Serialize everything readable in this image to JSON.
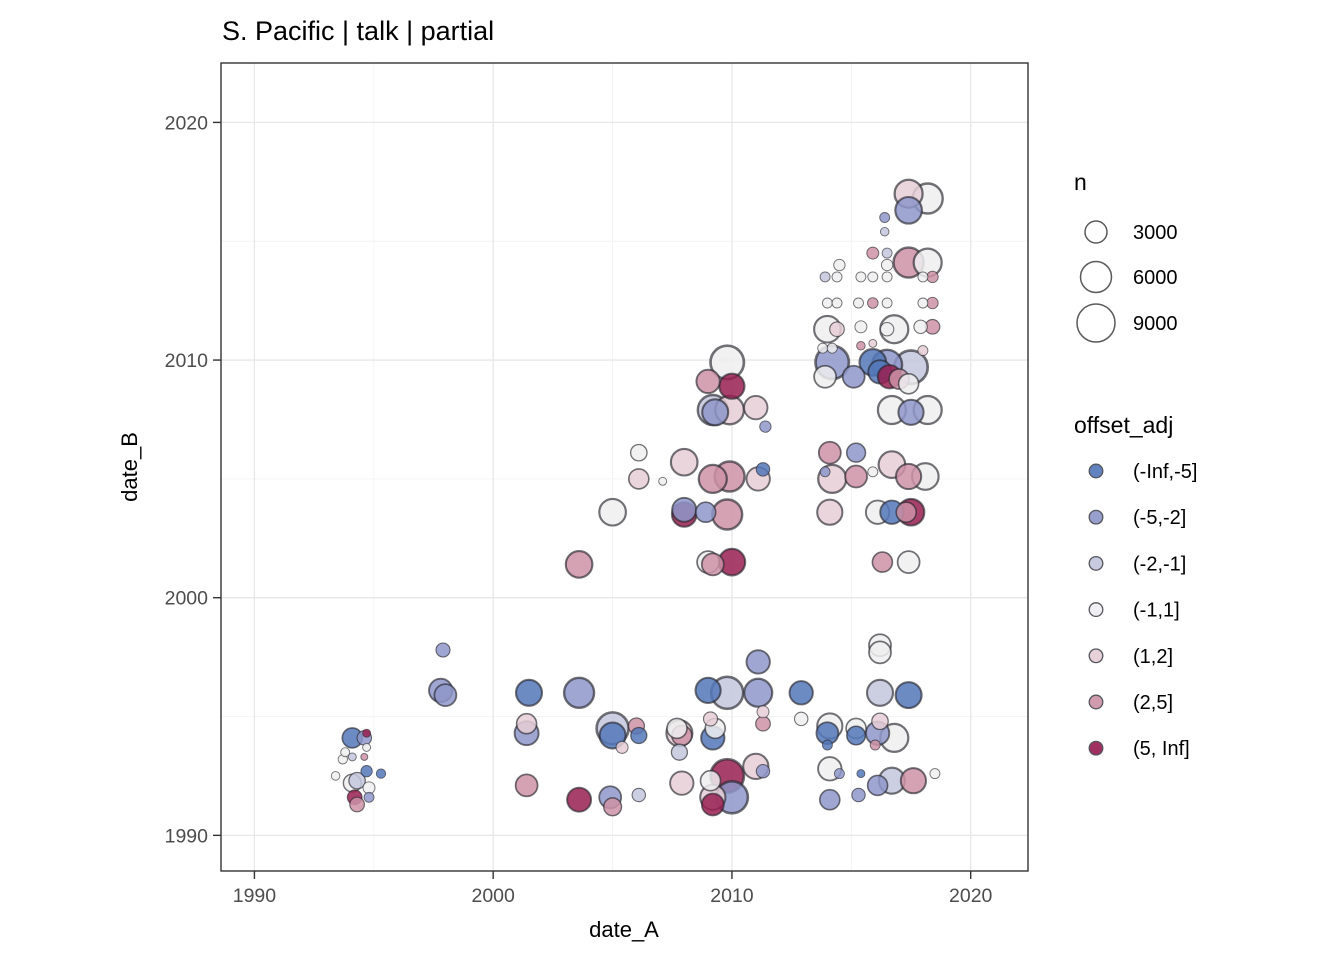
{
  "title": "S. Pacific | talk | partial",
  "chart_data": {
    "type": "scatter",
    "xlabel": "date_A",
    "ylabel": "date_B",
    "x_ticks": [
      1990,
      2000,
      2010,
      2020
    ],
    "y_ticks": [
      1990,
      2000,
      2010,
      2020
    ],
    "x_minor": [
      1995,
      2005,
      2015
    ],
    "y_minor": [
      1995,
      2005,
      2015
    ],
    "xlim": [
      1988.6,
      2022.4
    ],
    "ylim": [
      1988.5,
      2022.5
    ],
    "grid": "major+minor, white panel, dark border",
    "size_scale": {
      "type": "area",
      "r_per_sqrt_n": 0.2
    },
    "size_legend": {
      "title": "n",
      "values": [
        3000,
        6000,
        9000
      ]
    },
    "color_legend": {
      "title": "offset_adj",
      "bins": [
        {
          "label": "(-Inf,-5]",
          "color": "#5377b9"
        },
        {
          "label": "(-5,-2]",
          "color": "#8e97c9"
        },
        {
          "label": "(-2,-1]",
          "color": "#c3c7dc"
        },
        {
          "label": "(-1,1]",
          "color": "#efeef0"
        },
        {
          "label": "(1,2]",
          "color": "#e6ced6"
        },
        {
          "label": "(2,5]",
          "color": "#cc92a6"
        },
        {
          "label": "(5, Inf]",
          "color": "#981e51"
        }
      ]
    },
    "point_format": [
      "date_A",
      "date_B",
      "n",
      "offset_adj_bin_index"
    ],
    "points": [
      [
        1994.1,
        1994.1,
        2500,
        0
      ],
      [
        1994.6,
        1994.1,
        1300,
        1
      ],
      [
        1994.7,
        1994.3,
        400,
        6
      ],
      [
        1993.8,
        1993.5,
        500,
        3
      ],
      [
        1994.1,
        1993.3,
        400,
        2
      ],
      [
        1994.6,
        1993.3,
        300,
        5
      ],
      [
        1993.7,
        1993.2,
        550,
        3
      ],
      [
        1994.7,
        1993.7,
        400,
        3
      ],
      [
        1993.4,
        1992.5,
        460,
        3
      ],
      [
        1994.7,
        1992.7,
        810,
        0
      ],
      [
        1995.3,
        1992.6,
        550,
        0
      ],
      [
        1994.3,
        1992.3,
        1700,
        2
      ],
      [
        1994.1,
        1992.2,
        2000,
        3
      ],
      [
        1994.8,
        1992.0,
        900,
        3
      ],
      [
        1994.2,
        1991.6,
        1330,
        6
      ],
      [
        1994.3,
        1991.3,
        1330,
        5
      ],
      [
        1994.8,
        1991.6,
        625,
        1
      ],
      [
        1997.9,
        1997.8,
        1225,
        1
      ],
      [
        1997.8,
        1996.1,
        3400,
        1
      ],
      [
        1998.0,
        1995.9,
        3000,
        1
      ],
      [
        2001.5,
        1996.0,
        4200,
        0
      ],
      [
        2003.6,
        1996.0,
        5600,
        1
      ],
      [
        2009.0,
        1996.1,
        4000,
        0
      ],
      [
        2009.8,
        1996.0,
        6400,
        2
      ],
      [
        2011.1,
        1996.0,
        4900,
        1
      ],
      [
        2012.9,
        1996.0,
        3400,
        0
      ],
      [
        2016.2,
        1996.0,
        4200,
        2
      ],
      [
        2017.4,
        1995.9,
        4200,
        0
      ],
      [
        2011.1,
        1997.3,
        3400,
        1
      ],
      [
        2016.2,
        1998.0,
        3000,
        3
      ],
      [
        2016.2,
        1997.7,
        3000,
        3
      ],
      [
        2001.4,
        1994.7,
        2500,
        4
      ],
      [
        2001.4,
        1994.3,
        3600,
        1
      ],
      [
        2005.0,
        1994.5,
        6400,
        2
      ],
      [
        2005.0,
        1994.2,
        4200,
        0
      ],
      [
        2005.4,
        1993.7,
        900,
        4
      ],
      [
        2006.0,
        1994.6,
        1600,
        5
      ],
      [
        2006.1,
        1994.2,
        1600,
        0
      ],
      [
        2007.8,
        1994.3,
        4200,
        4
      ],
      [
        2007.9,
        1994.2,
        2500,
        5
      ],
      [
        2007.7,
        1994.5,
        2500,
        3
      ],
      [
        2007.8,
        1993.5,
        1600,
        2
      ],
      [
        2009.1,
        1994.9,
        1225,
        4
      ],
      [
        2009.3,
        1994.5,
        2500,
        3
      ],
      [
        2009.2,
        1994.1,
        3400,
        0
      ],
      [
        2011.3,
        1995.2,
        900,
        4
      ],
      [
        2011.3,
        1994.7,
        1330,
        5
      ],
      [
        2012.9,
        1994.9,
        1120,
        3
      ],
      [
        2014.0,
        1994.3,
        3000,
        0
      ],
      [
        2014.1,
        1994.6,
        4000,
        3
      ],
      [
        2014.0,
        1993.8,
        625,
        0
      ],
      [
        2015.2,
        1994.5,
        2500,
        3
      ],
      [
        2015.2,
        1994.2,
        2160,
        0
      ],
      [
        2016.2,
        1994.8,
        1700,
        4
      ],
      [
        2016.1,
        1994.3,
        3400,
        1
      ],
      [
        2016.0,
        1993.8,
        625,
        5
      ],
      [
        2016.8,
        1994.1,
        4900,
        3
      ],
      [
        2001.4,
        1992.1,
        3000,
        5
      ],
      [
        2003.6,
        1991.5,
        3600,
        6
      ],
      [
        2004.9,
        1991.6,
        3000,
        1
      ],
      [
        2005.0,
        1991.2,
        2000,
        5
      ],
      [
        2006.1,
        1991.7,
        1120,
        2
      ],
      [
        2007.9,
        1992.2,
        3400,
        4
      ],
      [
        2009.1,
        1992.3,
        2500,
        3
      ],
      [
        2009.8,
        1992.5,
        7000,
        6
      ],
      [
        2010.0,
        1991.6,
        6400,
        1
      ],
      [
        2009.2,
        1991.6,
        4000,
        4
      ],
      [
        2009.2,
        1991.3,
        3000,
        6
      ],
      [
        2011.0,
        1992.9,
        4000,
        4
      ],
      [
        2011.3,
        1992.7,
        1120,
        1
      ],
      [
        2014.1,
        1992.8,
        3400,
        3
      ],
      [
        2014.5,
        1992.6,
        625,
        1
      ],
      [
        2015.4,
        1992.6,
        400,
        0
      ],
      [
        2014.1,
        1991.5,
        2500,
        1
      ],
      [
        2015.3,
        1991.7,
        1120,
        1
      ],
      [
        2016.1,
        1992.1,
        2500,
        1
      ],
      [
        2016.7,
        1992.3,
        4200,
        2
      ],
      [
        2017.6,
        1992.3,
        4000,
        5
      ],
      [
        2018.5,
        1992.6,
        625,
        3
      ],
      [
        2006.1,
        2006.1,
        1700,
        3
      ],
      [
        2006.1,
        2005.0,
        2500,
        4
      ],
      [
        2007.1,
        2004.9,
        400,
        3
      ],
      [
        2008.0,
        2005.7,
        4400,
        4
      ],
      [
        2009.2,
        2005.0,
        4900,
        5
      ],
      [
        2009.9,
        2005.1,
        5600,
        5
      ],
      [
        2011.1,
        2005.0,
        3400,
        4
      ],
      [
        2011.3,
        2005.4,
        1120,
        0
      ],
      [
        2005.0,
        2003.6,
        4400,
        3
      ],
      [
        2008.0,
        2003.5,
        3800,
        6
      ],
      [
        2008.0,
        2003.7,
        3600,
        1
      ],
      [
        2008.9,
        2003.6,
        2500,
        1
      ],
      [
        2009.8,
        2003.5,
        5600,
        5
      ],
      [
        2003.6,
        2001.4,
        4400,
        5
      ],
      [
        2009.0,
        2001.5,
        3000,
        3
      ],
      [
        2009.2,
        2001.4,
        3000,
        5
      ],
      [
        2010.0,
        2001.5,
        4400,
        6
      ],
      [
        2009.8,
        2009.9,
        7000,
        3
      ],
      [
        2009.0,
        2009.1,
        3400,
        5
      ],
      [
        2010.0,
        2008.9,
        4000,
        6
      ],
      [
        2009.2,
        2007.9,
        5600,
        2
      ],
      [
        2009.3,
        2007.8,
        4200,
        1
      ],
      [
        2009.9,
        2007.9,
        5100,
        4
      ],
      [
        2011.0,
        2008.0,
        3400,
        4
      ],
      [
        2011.4,
        2007.2,
        810,
        1
      ],
      [
        2017.4,
        2017.0,
        4900,
        4
      ],
      [
        2018.2,
        2016.8,
        5600,
        3
      ],
      [
        2017.4,
        2016.3,
        4400,
        1
      ],
      [
        2016.4,
        2016.0,
        625,
        1
      ],
      [
        2016.4,
        2015.4,
        460,
        2
      ],
      [
        2015.9,
        2014.5,
        900,
        5
      ],
      [
        2016.5,
        2014.5,
        625,
        2
      ],
      [
        2017.4,
        2014.1,
        5600,
        5
      ],
      [
        2018.2,
        2014.1,
        4900,
        3
      ],
      [
        2014.5,
        2014.0,
        810,
        3
      ],
      [
        2016.5,
        2014.0,
        810,
        3
      ],
      [
        2013.9,
        2013.5,
        625,
        2
      ],
      [
        2014.4,
        2013.5,
        625,
        3
      ],
      [
        2015.4,
        2013.5,
        625,
        3
      ],
      [
        2015.9,
        2013.5,
        625,
        3
      ],
      [
        2016.5,
        2013.5,
        625,
        3
      ],
      [
        2018.0,
        2013.5,
        625,
        3
      ],
      [
        2018.4,
        2013.5,
        810,
        5
      ],
      [
        2014.0,
        2012.4,
        625,
        3
      ],
      [
        2014.4,
        2012.4,
        625,
        3
      ],
      [
        2015.3,
        2012.4,
        625,
        3
      ],
      [
        2015.9,
        2012.4,
        700,
        5
      ],
      [
        2016.5,
        2012.4,
        625,
        3
      ],
      [
        2018.0,
        2012.4,
        625,
        3
      ],
      [
        2018.4,
        2012.4,
        810,
        5
      ],
      [
        2014.0,
        2011.3,
        4400,
        3
      ],
      [
        2014.4,
        2011.3,
        1330,
        4
      ],
      [
        2015.4,
        2011.4,
        900,
        3
      ],
      [
        2016.8,
        2011.3,
        4900,
        3
      ],
      [
        2016.5,
        2011.3,
        1120,
        3
      ],
      [
        2017.9,
        2011.4,
        1120,
        3
      ],
      [
        2018.4,
        2011.4,
        1330,
        5
      ],
      [
        2014.2,
        2009.9,
        7000,
        1
      ],
      [
        2013.8,
        2010.5,
        625,
        3
      ],
      [
        2014.2,
        2010.5,
        625,
        3
      ],
      [
        2013.9,
        2009.3,
        3000,
        3
      ],
      [
        2015.1,
        2009.3,
        3000,
        1
      ],
      [
        2015.4,
        2010.6,
        460,
        5
      ],
      [
        2015.9,
        2010.7,
        400,
        4
      ],
      [
        2015.9,
        2009.9,
        4400,
        0
      ],
      [
        2016.5,
        2009.8,
        5600,
        1
      ],
      [
        2016.2,
        2009.5,
        3400,
        0
      ],
      [
        2016.6,
        2009.3,
        3400,
        6
      ],
      [
        2017.0,
        2009.2,
        2500,
        5
      ],
      [
        2017.5,
        2009.7,
        7000,
        2
      ],
      [
        2018.0,
        2010.4,
        625,
        4
      ],
      [
        2017.4,
        2009.0,
        2500,
        3
      ],
      [
        2016.7,
        2007.9,
        4900,
        3
      ],
      [
        2017.5,
        2007.8,
        4000,
        1
      ],
      [
        2018.2,
        2007.9,
        4900,
        3
      ],
      [
        2014.1,
        2006.1,
        3000,
        5
      ],
      [
        2015.2,
        2006.1,
        2200,
        1
      ],
      [
        2013.9,
        2005.3,
        625,
        1
      ],
      [
        2014.2,
        2005.0,
        4900,
        4
      ],
      [
        2015.2,
        2005.1,
        3000,
        5
      ],
      [
        2015.9,
        2005.3,
        625,
        3
      ],
      [
        2016.7,
        2005.6,
        4400,
        4
      ],
      [
        2017.4,
        2005.1,
        4000,
        5
      ],
      [
        2018.1,
        2005.1,
        4400,
        3
      ],
      [
        2014.1,
        2003.6,
        4000,
        4
      ],
      [
        2016.1,
        2003.6,
        3400,
        3
      ],
      [
        2016.7,
        2003.6,
        3400,
        0
      ],
      [
        2017.3,
        2003.6,
        2500,
        5
      ],
      [
        2017.5,
        2003.6,
        4400,
        6
      ],
      [
        2016.3,
        2001.5,
        2500,
        5
      ],
      [
        2017.4,
        2001.5,
        3000,
        3
      ]
    ]
  }
}
